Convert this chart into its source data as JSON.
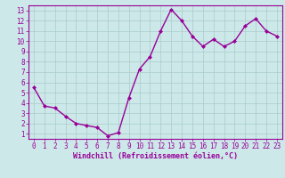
{
  "x": [
    0,
    1,
    2,
    3,
    4,
    5,
    6,
    7,
    8,
    9,
    10,
    11,
    12,
    13,
    14,
    15,
    16,
    17,
    18,
    19,
    20,
    21,
    22,
    23
  ],
  "y": [
    5.5,
    3.7,
    3.5,
    2.7,
    2.0,
    1.8,
    1.6,
    0.8,
    1.1,
    4.5,
    7.3,
    8.5,
    11.0,
    13.1,
    12.0,
    10.5,
    9.5,
    10.2,
    9.5,
    10.0,
    11.5,
    12.2,
    11.0,
    10.5
  ],
  "line_color": "#990099",
  "marker": "D",
  "marker_size": 2.0,
  "bg_color": "#cce8e8",
  "grid_color": "#aacccc",
  "axis_label_color": "#990099",
  "tick_label_color": "#990099",
  "xlabel": "Windchill (Refroidissement éolien,°C)",
  "xlim": [
    -0.5,
    23.5
  ],
  "ylim": [
    0.5,
    13.5
  ],
  "yticks": [
    1,
    2,
    3,
    4,
    5,
    6,
    7,
    8,
    9,
    10,
    11,
    12,
    13
  ],
  "xticks": [
    0,
    1,
    2,
    3,
    4,
    5,
    6,
    7,
    8,
    9,
    10,
    11,
    12,
    13,
    14,
    15,
    16,
    17,
    18,
    19,
    20,
    21,
    22,
    23
  ],
  "tick_fontsize": 5.5,
  "xlabel_fontsize": 6.0,
  "line_width": 1.0
}
